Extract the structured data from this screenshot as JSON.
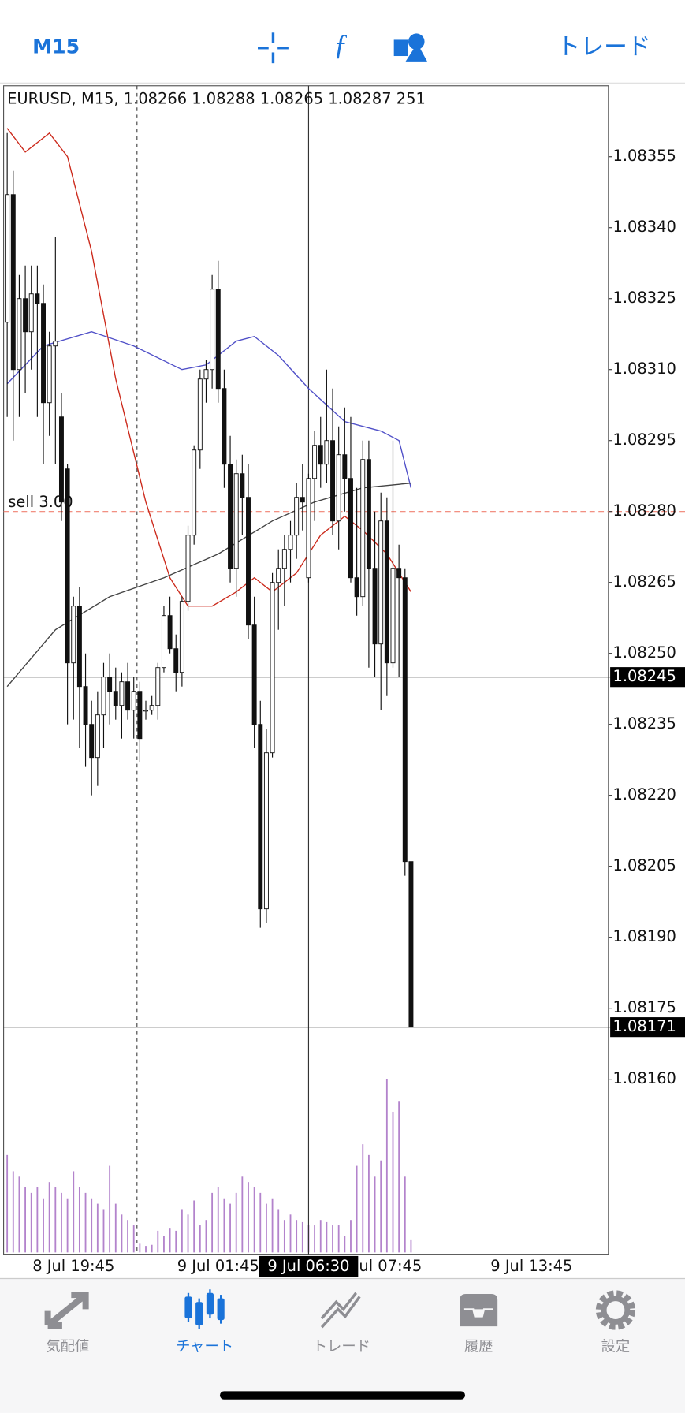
{
  "header": {
    "timeframe": "M15",
    "trade": "トレード"
  },
  "chart_data": {
    "type": "candlestick",
    "title": "EURUSD, M15, 1.08266 1.08288 1.08265 1.08287 251",
    "candles": [
      [
        1.0832,
        1.0836,
        1.083,
        1.08347
      ],
      [
        1.08347,
        1.08352,
        1.08295,
        1.0831
      ],
      [
        1.0831,
        1.0833,
        1.083,
        1.08325
      ],
      [
        1.08325,
        1.08332,
        1.08305,
        1.08318
      ],
      [
        1.08318,
        1.08332,
        1.0831,
        1.08326
      ],
      [
        1.08326,
        1.08332,
        1.083,
        1.08324
      ],
      [
        1.08324,
        1.08328,
        1.0829,
        1.08303
      ],
      [
        1.08303,
        1.08318,
        1.08296,
        1.08315
      ],
      [
        1.08315,
        1.08338,
        1.0829,
        1.08316
      ],
      [
        1.083,
        1.08305,
        1.08278,
        1.08282
      ],
      [
        1.08289,
        1.0829,
        1.08235,
        1.08248
      ],
      [
        1.08248,
        1.08262,
        1.08236,
        1.0826
      ],
      [
        1.0826,
        1.08264,
        1.0823,
        1.08243
      ],
      [
        1.08243,
        1.0825,
        1.08226,
        1.08235
      ],
      [
        1.08235,
        1.0824,
        1.0822,
        1.08228
      ],
      [
        1.08228,
        1.08242,
        1.08222,
        1.08237
      ],
      [
        1.08237,
        1.08248,
        1.0823,
        1.08245
      ],
      [
        1.08245,
        1.0825,
        1.08235,
        1.08242
      ],
      [
        1.08242,
        1.08247,
        1.08236,
        1.08239
      ],
      [
        1.08239,
        1.08246,
        1.08232,
        1.08244
      ],
      [
        1.08244,
        1.08248,
        1.08236,
        1.08238
      ],
      [
        1.08238,
        1.08245,
        1.08232,
        1.08242
      ],
      [
        1.08242,
        1.08244,
        1.08227,
        1.08232
      ],
      [
        1.08238,
        1.0824,
        1.08236,
        1.08238
      ],
      [
        1.08238,
        1.08241,
        1.08237,
        1.08239
      ],
      [
        1.08239,
        1.08248,
        1.08236,
        1.08247
      ],
      [
        1.08247,
        1.0826,
        1.08246,
        1.08258
      ],
      [
        1.08258,
        1.08262,
        1.0825,
        1.08251
      ],
      [
        1.08251,
        1.08254,
        1.08242,
        1.08246
      ],
      [
        1.08246,
        1.08262,
        1.08243,
        1.08261
      ],
      [
        1.08261,
        1.08277,
        1.08259,
        1.08275
      ],
      [
        1.08275,
        1.08294,
        1.08273,
        1.08293
      ],
      [
        1.08293,
        1.0831,
        1.08289,
        1.08308
      ],
      [
        1.08308,
        1.08312,
        1.08303,
        1.0831
      ],
      [
        1.0831,
        1.0833,
        1.08306,
        1.08327
      ],
      [
        1.08327,
        1.08333,
        1.08303,
        1.08306
      ],
      [
        1.08306,
        1.0831,
        1.08285,
        1.0829
      ],
      [
        1.0829,
        1.08296,
        1.08265,
        1.08268
      ],
      [
        1.08268,
        1.08291,
        1.08262,
        1.08288
      ],
      [
        1.08288,
        1.08292,
        1.08275,
        1.08283
      ],
      [
        1.08283,
        1.0829,
        1.08253,
        1.08256
      ],
      [
        1.08256,
        1.08262,
        1.0823,
        1.08235
      ],
      [
        1.08235,
        1.0824,
        1.08192,
        1.08196
      ],
      [
        1.08196,
        1.08234,
        1.08193,
        1.08229
      ],
      [
        1.08229,
        1.08267,
        1.08228,
        1.08265
      ],
      [
        1.08265,
        1.08272,
        1.08255,
        1.08268
      ],
      [
        1.08268,
        1.08275,
        1.0826,
        1.08272
      ],
      [
        1.08272,
        1.08278,
        1.08265,
        1.08275
      ],
      [
        1.08275,
        1.08286,
        1.0827,
        1.08283
      ],
      [
        1.08283,
        1.0829,
        1.08276,
        1.08282
      ],
      [
        1.08266,
        1.08288,
        1.08265,
        1.08287
      ],
      [
        1.08287,
        1.08297,
        1.08278,
        1.08294
      ],
      [
        1.08294,
        1.083,
        1.08285,
        1.0829
      ],
      [
        1.0829,
        1.0831,
        1.08286,
        1.08295
      ],
      [
        1.08295,
        1.08306,
        1.08275,
        1.08278
      ],
      [
        1.08278,
        1.08298,
        1.08272,
        1.08292
      ],
      [
        1.08292,
        1.08302,
        1.0828,
        1.08287
      ],
      [
        1.08287,
        1.083,
        1.08265,
        1.08266
      ],
      [
        1.08266,
        1.08285,
        1.08258,
        1.08262
      ],
      [
        1.08262,
        1.08295,
        1.0826,
        1.08291
      ],
      [
        1.08291,
        1.08295,
        1.08247,
        1.08268
      ],
      [
        1.08268,
        1.0828,
        1.08245,
        1.08252
      ],
      [
        1.08252,
        1.08284,
        1.08238,
        1.08278
      ],
      [
        1.08278,
        1.08283,
        1.08241,
        1.08248
      ],
      [
        1.08248,
        1.08295,
        1.08247,
        1.08268
      ],
      [
        1.08268,
        1.08273,
        1.08245,
        1.08266
      ],
      [
        1.08266,
        1.08268,
        1.08203,
        1.08206
      ],
      [
        1.08206,
        1.08206,
        1.08171,
        1.08171
      ]
    ],
    "volume": [
      900,
      750,
      700,
      600,
      550,
      600,
      500,
      650,
      600,
      550,
      500,
      750,
      600,
      550,
      500,
      450,
      400,
      800,
      450,
      350,
      300,
      250,
      80,
      60,
      70,
      200,
      150,
      220,
      200,
      400,
      350,
      480,
      250,
      300,
      550,
      600,
      500,
      450,
      550,
      700,
      650,
      600,
      550,
      450,
      500,
      400,
      300,
      350,
      300,
      280,
      251,
      250,
      300,
      280,
      250,
      250,
      150,
      300,
      800,
      1000,
      900,
      700,
      850,
      1600,
      1300,
      1400,
      700,
      120
    ],
    "volume_color": "#b383cc",
    "ylim": [
      1.08123,
      1.0837
    ],
    "yticks": [
      1.08355,
      {
        "value": 1.0834,
        "label": "1.08340"
      },
      1.08325,
      {
        "value": 1.0831,
        "label": "1.08310"
      },
      1.08295,
      {
        "value": 1.0828,
        "label": "1.08280"
      },
      1.08265,
      {
        "value": 1.0825,
        "label": "1.08250"
      },
      1.08235,
      {
        "value": 1.0822,
        "label": "1.08220"
      },
      1.08205,
      {
        "value": 1.0819,
        "label": "1.08190"
      },
      1.08175,
      {
        "value": 1.0816,
        "label": "1.08160"
      }
    ],
    "xticks": [
      {
        "value": 11,
        "label": "8 Jul 19:45"
      },
      {
        "value": 35,
        "label": "9 Jul 01:45"
      },
      {
        "value": 62,
        "label": "9 Jul 07:45"
      },
      {
        "value": 87,
        "label": "9 Jul 13:45"
      }
    ],
    "moving_averages": [
      {
        "color": "#cc2a1c",
        "x": [
          0,
          3,
          7,
          10,
          14,
          18,
          23,
          27,
          30,
          34,
          38,
          41,
          44,
          48,
          52,
          56,
          59,
          63,
          67
        ],
        "values": [
          1.08361,
          1.08356,
          1.0836,
          1.08355,
          1.08335,
          1.08308,
          1.08282,
          1.08266,
          1.0826,
          1.0826,
          1.08263,
          1.08266,
          1.08263,
          1.08267,
          1.08275,
          1.08279,
          1.08276,
          1.08271,
          1.08263
        ]
      },
      {
        "color": "#5050c8",
        "x": [
          0,
          6,
          14,
          21,
          29,
          33,
          38,
          41,
          45,
          50,
          56,
          62,
          65,
          67
        ],
        "values": [
          1.08307,
          1.08315,
          1.08318,
          1.08315,
          1.0831,
          1.08311,
          1.08316,
          1.08317,
          1.08313,
          1.08306,
          1.08299,
          1.08297,
          1.08295,
          1.08285
        ]
      },
      {
        "color": "#444444",
        "x": [
          0,
          8,
          17,
          26,
          35,
          44,
          51,
          59,
          67
        ],
        "values": [
          1.08243,
          1.08255,
          1.08262,
          1.08266,
          1.08271,
          1.08278,
          1.08282,
          1.08285,
          1.08286
        ]
      }
    ],
    "order": {
      "label": "sell 3.00",
      "price": 1.0828
    },
    "crosshair": {
      "index": 50,
      "price": 1.08245,
      "time": "9 Jul 06:30"
    },
    "current_price": 1.08171
  },
  "tabs": [
    {
      "label": "気配値"
    },
    {
      "label": "チャート"
    },
    {
      "label": "トレード"
    },
    {
      "label": "履歴"
    },
    {
      "label": "設定"
    }
  ],
  "active_tab": 1
}
